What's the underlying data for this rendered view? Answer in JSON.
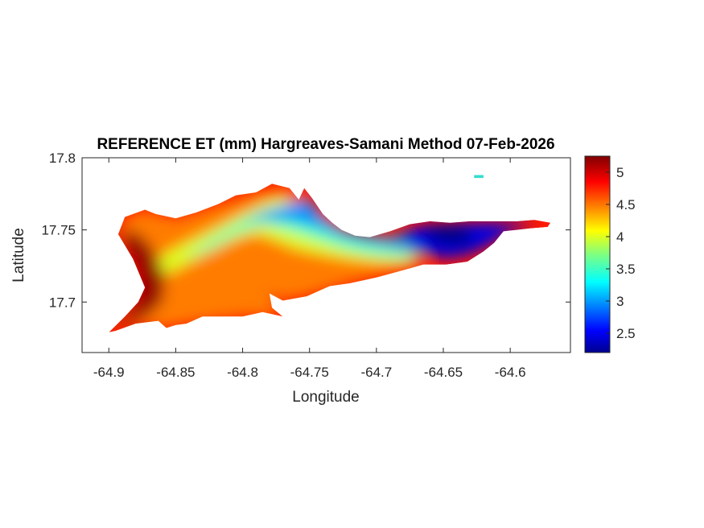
{
  "chart_data": {
    "type": "heatmap",
    "title": "REFERENCE ET (mm) Hargreaves-Samani Method  07-Feb-2026",
    "xlabel": "Longitude",
    "ylabel": "Latitude",
    "xlim": [
      -64.92,
      -64.555
    ],
    "ylim": [
      17.665,
      17.8
    ],
    "x_ticks": [
      -64.9,
      -64.85,
      -64.8,
      -64.75,
      -64.7,
      -64.65,
      -64.6
    ],
    "x_tick_labels": [
      "-64.9",
      "-64.85",
      "-64.8",
      "-64.75",
      "-64.7",
      "-64.65",
      "-64.6"
    ],
    "y_ticks": [
      17.7,
      17.75,
      17.8
    ],
    "y_tick_labels": [
      "17.7",
      "17.75",
      "17.8"
    ],
    "colorbar": {
      "colormap": "jet",
      "min": 2.2,
      "max": 5.25,
      "ticks": [
        2.5,
        3,
        3.5,
        4,
        4.5,
        5
      ],
      "tick_labels": [
        "2.5",
        "3",
        "3.5",
        "4",
        "4.5",
        "5"
      ]
    },
    "grid": false,
    "island_outline": [
      [
        -64.9,
        17.679
      ],
      [
        -64.888,
        17.69
      ],
      [
        -64.878,
        17.7
      ],
      [
        -64.873,
        17.71
      ],
      [
        -64.882,
        17.73
      ],
      [
        -64.893,
        17.747
      ],
      [
        -64.888,
        17.759
      ],
      [
        -64.873,
        17.764
      ],
      [
        -64.865,
        17.761
      ],
      [
        -64.85,
        17.758
      ],
      [
        -64.835,
        17.762
      ],
      [
        -64.818,
        17.768
      ],
      [
        -64.805,
        17.774
      ],
      [
        -64.79,
        17.776
      ],
      [
        -64.778,
        17.782
      ],
      [
        -64.765,
        17.779
      ],
      [
        -64.758,
        17.771
      ],
      [
        -64.754,
        17.779
      ],
      [
        -64.748,
        17.772
      ],
      [
        -64.74,
        17.761
      ],
      [
        -64.733,
        17.755
      ],
      [
        -64.726,
        17.75
      ],
      [
        -64.716,
        17.746
      ],
      [
        -64.705,
        17.745
      ],
      [
        -64.69,
        17.749
      ],
      [
        -64.675,
        17.754
      ],
      [
        -64.66,
        17.756
      ],
      [
        -64.645,
        17.755
      ],
      [
        -64.63,
        17.756
      ],
      [
        -64.61,
        17.756
      ],
      [
        -64.595,
        17.756
      ],
      [
        -64.582,
        17.757
      ],
      [
        -64.57,
        17.755
      ],
      [
        -64.572,
        17.752
      ],
      [
        -64.585,
        17.751
      ],
      [
        -64.595,
        17.75
      ],
      [
        -64.605,
        17.749
      ],
      [
        -64.612,
        17.741
      ],
      [
        -64.62,
        17.735
      ],
      [
        -64.632,
        17.728
      ],
      [
        -64.648,
        17.726
      ],
      [
        -64.665,
        17.726
      ],
      [
        -64.68,
        17.722
      ],
      [
        -64.7,
        17.717
      ],
      [
        -64.72,
        17.713
      ],
      [
        -64.735,
        17.711
      ],
      [
        -64.752,
        17.704
      ],
      [
        -64.77,
        17.701
      ],
      [
        -64.78,
        17.706
      ],
      [
        -64.778,
        17.696
      ],
      [
        -64.77,
        17.69
      ],
      [
        -64.785,
        17.693
      ],
      [
        -64.8,
        17.69
      ],
      [
        -64.815,
        17.69
      ],
      [
        -64.83,
        17.69
      ],
      [
        -64.842,
        17.685
      ],
      [
        -64.85,
        17.684
      ],
      [
        -64.857,
        17.682
      ],
      [
        -64.863,
        17.687
      ],
      [
        -64.88,
        17.685
      ],
      [
        -64.895,
        17.68
      ],
      [
        -64.9,
        17.679
      ]
    ],
    "islet_outline": [
      [
        -64.627,
        17.788
      ],
      [
        -64.62,
        17.788
      ],
      [
        -64.62,
        17.786
      ],
      [
        -64.627,
        17.786
      ]
    ],
    "contour_bands": [
      {
        "value": 4.5,
        "points": [
          [
            -64.9,
            17.679
          ],
          [
            -64.888,
            17.69
          ],
          [
            -64.878,
            17.7
          ],
          [
            -64.873,
            17.71
          ],
          [
            -64.882,
            17.73
          ],
          [
            -64.893,
            17.747
          ],
          [
            -64.888,
            17.759
          ],
          [
            -64.873,
            17.764
          ],
          [
            -64.85,
            17.758
          ],
          [
            -64.818,
            17.768
          ],
          [
            -64.79,
            17.776
          ],
          [
            -64.765,
            17.779
          ],
          [
            -64.74,
            17.761
          ],
          [
            -64.716,
            17.746
          ],
          [
            -64.7,
            17.742
          ],
          [
            -64.68,
            17.735
          ],
          [
            -64.665,
            17.728
          ],
          [
            -64.68,
            17.722
          ],
          [
            -64.72,
            17.713
          ],
          [
            -64.752,
            17.704
          ],
          [
            -64.77,
            17.701
          ],
          [
            -64.78,
            17.706
          ],
          [
            -64.77,
            17.69
          ],
          [
            -64.8,
            17.69
          ],
          [
            -64.842,
            17.685
          ],
          [
            -64.857,
            17.682
          ],
          [
            -64.88,
            17.685
          ],
          [
            -64.9,
            17.679
          ]
        ]
      },
      {
        "value": 4.0,
        "points": [
          [
            -64.868,
            17.726
          ],
          [
            -64.855,
            17.735
          ],
          [
            -64.838,
            17.743
          ],
          [
            -64.818,
            17.752
          ],
          [
            -64.798,
            17.762
          ],
          [
            -64.782,
            17.77
          ],
          [
            -64.772,
            17.773
          ],
          [
            -64.76,
            17.768
          ],
          [
            -64.742,
            17.756
          ],
          [
            -64.722,
            17.745
          ],
          [
            -64.7,
            17.739
          ],
          [
            -64.68,
            17.733
          ],
          [
            -64.662,
            17.728
          ],
          [
            -64.68,
            17.727
          ],
          [
            -64.7,
            17.728
          ],
          [
            -64.72,
            17.73
          ],
          [
            -64.74,
            17.733
          ],
          [
            -64.76,
            17.737
          ],
          [
            -64.778,
            17.744
          ],
          [
            -64.79,
            17.748
          ],
          [
            -64.805,
            17.744
          ],
          [
            -64.825,
            17.735
          ],
          [
            -64.845,
            17.725
          ],
          [
            -64.86,
            17.718
          ]
        ]
      },
      {
        "value": 3.5,
        "points": [
          [
            -64.845,
            17.73
          ],
          [
            -64.825,
            17.742
          ],
          [
            -64.805,
            17.754
          ],
          [
            -64.785,
            17.763
          ],
          [
            -64.765,
            17.768
          ],
          [
            -64.745,
            17.758
          ],
          [
            -64.722,
            17.746
          ],
          [
            -64.7,
            17.74
          ],
          [
            -64.68,
            17.737
          ],
          [
            -64.665,
            17.733
          ],
          [
            -64.68,
            17.731
          ],
          [
            -64.7,
            17.733
          ],
          [
            -64.722,
            17.737
          ],
          [
            -64.745,
            17.744
          ],
          [
            -64.765,
            17.75
          ],
          [
            -64.785,
            17.755
          ],
          [
            -64.805,
            17.748
          ],
          [
            -64.825,
            17.737
          ]
        ]
      },
      {
        "value": 3.0,
        "points": [
          [
            -64.8,
            17.756
          ],
          [
            -64.782,
            17.763
          ],
          [
            -64.765,
            17.768
          ],
          [
            -64.75,
            17.772
          ],
          [
            -64.742,
            17.76
          ],
          [
            -64.725,
            17.75
          ],
          [
            -64.705,
            17.746
          ],
          [
            -64.69,
            17.745
          ],
          [
            -64.672,
            17.748
          ],
          [
            -64.65,
            17.748
          ],
          [
            -64.63,
            17.746
          ],
          [
            -64.62,
            17.737
          ],
          [
            -64.64,
            17.731
          ],
          [
            -64.66,
            17.733
          ],
          [
            -64.68,
            17.738
          ],
          [
            -64.705,
            17.741
          ],
          [
            -64.725,
            17.745
          ],
          [
            -64.745,
            17.752
          ],
          [
            -64.765,
            17.757
          ],
          [
            -64.785,
            17.757
          ]
        ]
      },
      {
        "value": 2.5,
        "points": [
          [
            -64.68,
            17.749
          ],
          [
            -64.66,
            17.754
          ],
          [
            -64.64,
            17.755
          ],
          [
            -64.615,
            17.755
          ],
          [
            -64.595,
            17.755
          ],
          [
            -64.58,
            17.754
          ],
          [
            -64.6,
            17.749
          ],
          [
            -64.615,
            17.74
          ],
          [
            -64.63,
            17.733
          ],
          [
            -64.648,
            17.73
          ],
          [
            -64.668,
            17.735
          ],
          [
            -64.68,
            17.741
          ]
        ]
      },
      {
        "value": 2.2,
        "points": [
          [
            -64.665,
            17.75
          ],
          [
            -64.65,
            17.753
          ],
          [
            -64.635,
            17.752
          ],
          [
            -64.625,
            17.745
          ],
          [
            -64.635,
            17.739
          ],
          [
            -64.65,
            17.74
          ],
          [
            -64.662,
            17.744
          ]
        ]
      },
      {
        "value": 5.2,
        "points": [
          [
            -64.898,
            17.681
          ],
          [
            -64.885,
            17.692
          ],
          [
            -64.876,
            17.705
          ],
          [
            -64.878,
            17.722
          ],
          [
            -64.888,
            17.74
          ],
          [
            -64.89,
            17.75
          ],
          [
            -64.878,
            17.748
          ],
          [
            -64.866,
            17.735
          ],
          [
            -64.858,
            17.718
          ],
          [
            -64.86,
            17.7
          ],
          [
            -64.872,
            17.69
          ],
          [
            -64.888,
            17.684
          ]
        ]
      }
    ]
  }
}
